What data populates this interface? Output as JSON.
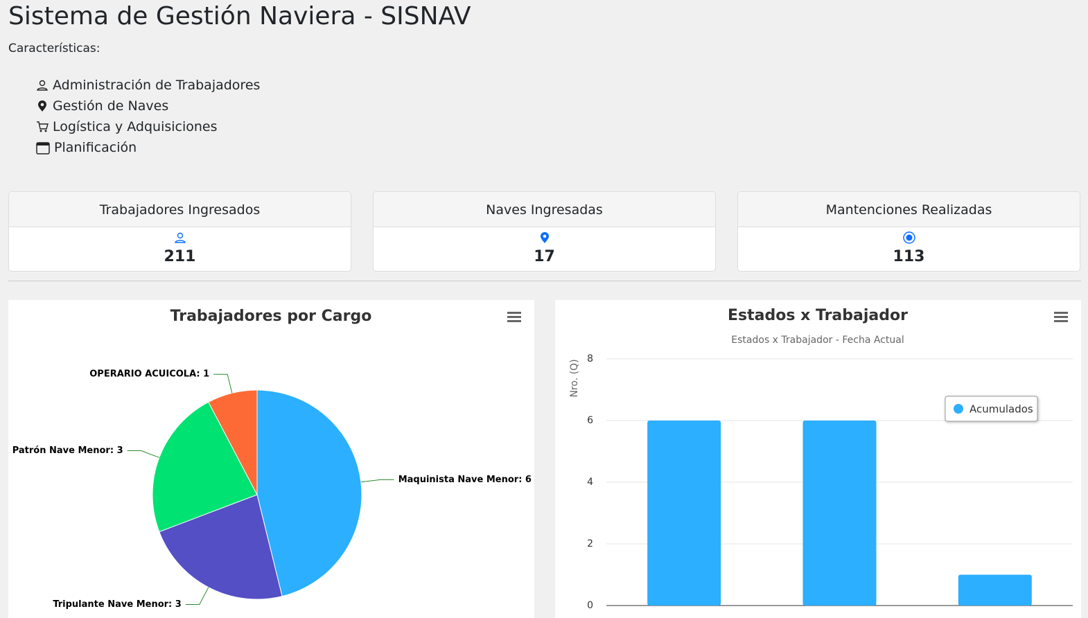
{
  "header": {
    "title": "Sistema de Gestión Naviera - SISNAV",
    "features_label": "Características:"
  },
  "features": [
    "Administración de Trabajadores",
    "Gestión de Naves",
    "Logística y Adquisiciones",
    "Planificación"
  ],
  "cards": [
    {
      "title": "Trabajadores Ingresados",
      "value": "211"
    },
    {
      "title": "Naves Ingresadas",
      "value": "17"
    },
    {
      "title": "Mantenciones Realizadas",
      "value": "113"
    }
  ],
  "chart_data": [
    {
      "type": "pie",
      "title": "Trabajadores por Cargo",
      "values": [
        6,
        3,
        3,
        1
      ],
      "value_labels": [
        "Maquinista Nave Menor: 6",
        "Tripulante Nave Menor: 3",
        "Patrón Nave Menor: 3",
        "OPERARIO ACUICOLA: 1"
      ],
      "colors": [
        "#2caffe",
        "#544fc5",
        "#00e272",
        "#fe6a35"
      ]
    },
    {
      "type": "bar",
      "title": "Estados x Trabajador",
      "subtitle": "Estados x Trabajador - Fecha Actual",
      "y_label": "Nro. (Q)",
      "categories": [
        null,
        null,
        null
      ],
      "series": [
        {
          "name": "Acumulados",
          "color": "#2caffe",
          "values": [
            6,
            6,
            1
          ]
        }
      ],
      "ylim": [
        0,
        8
      ],
      "yticks": [
        0,
        2,
        4,
        6,
        8
      ],
      "grid": true,
      "legend": "top-right"
    }
  ]
}
